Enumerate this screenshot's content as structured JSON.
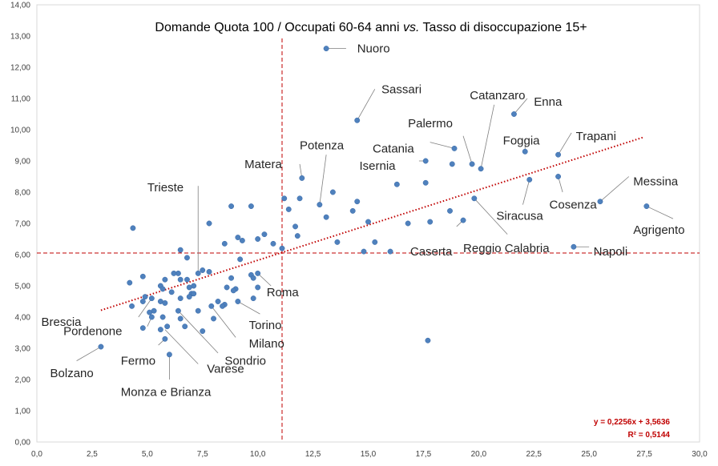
{
  "chart_data": {
    "type": "scatter",
    "title_parts": [
      "Domande Quota 100 / Occupati 60-64 anni ",
      "vs.",
      " Tasso di disoccupazione 15+"
    ],
    "xlim": [
      0,
      30
    ],
    "ylim": [
      0,
      14
    ],
    "x_ticks": [
      "0,0",
      "2,5",
      "5,0",
      "7,5",
      "10,0",
      "12,5",
      "15,0",
      "17,5",
      "20,0",
      "22,5",
      "25,0",
      "27,5",
      "30,0"
    ],
    "y_ticks": [
      "0,00",
      "1,00",
      "2,00",
      "3,00",
      "4,00",
      "5,00",
      "6,00",
      "7,00",
      "8,00",
      "9,00",
      "10,00",
      "11,00",
      "12,00",
      "13,00",
      "14,00"
    ],
    "grid": false,
    "marker_color": "#4f81bd",
    "trend_color": "#c00000",
    "reference_lines": {
      "x": 11.1,
      "y": 6.05
    },
    "trendline": {
      "slope": 0.2256,
      "intercept": 3.5636,
      "x_range": [
        2.9,
        27.5
      ]
    },
    "equation": "y = 0,2256x + 3,5636",
    "r_squared": "R² = 0,5144",
    "points": [
      {
        "x": 13.1,
        "y": 12.6
      },
      {
        "x": 14.5,
        "y": 10.3
      },
      {
        "x": 21.6,
        "y": 10.5
      },
      {
        "x": 19.7,
        "y": 8.9
      },
      {
        "x": 20.1,
        "y": 8.75
      },
      {
        "x": 18.9,
        "y": 9.4
      },
      {
        "x": 22.1,
        "y": 9.3
      },
      {
        "x": 23.6,
        "y": 9.2
      },
      {
        "x": 17.6,
        "y": 9.0
      },
      {
        "x": 18.8,
        "y": 8.9
      },
      {
        "x": 23.6,
        "y": 8.5
      },
      {
        "x": 22.3,
        "y": 8.4
      },
      {
        "x": 25.5,
        "y": 7.7
      },
      {
        "x": 27.6,
        "y": 7.55
      },
      {
        "x": 24.3,
        "y": 6.25
      },
      {
        "x": 19.8,
        "y": 7.8
      },
      {
        "x": 19.3,
        "y": 7.1
      },
      {
        "x": 18.7,
        "y": 7.4
      },
      {
        "x": 17.6,
        "y": 8.3
      },
      {
        "x": 17.8,
        "y": 7.05
      },
      {
        "x": 16.3,
        "y": 8.25
      },
      {
        "x": 16.8,
        "y": 7.0
      },
      {
        "x": 15.0,
        "y": 7.05
      },
      {
        "x": 14.5,
        "y": 7.7
      },
      {
        "x": 14.3,
        "y": 7.4
      },
      {
        "x": 16.0,
        "y": 6.1
      },
      {
        "x": 15.3,
        "y": 6.4
      },
      {
        "x": 14.8,
        "y": 6.1
      },
      {
        "x": 13.4,
        "y": 8.0
      },
      {
        "x": 12.8,
        "y": 7.6
      },
      {
        "x": 13.1,
        "y": 7.2
      },
      {
        "x": 13.6,
        "y": 6.4
      },
      {
        "x": 12.0,
        "y": 8.45
      },
      {
        "x": 11.9,
        "y": 7.8
      },
      {
        "x": 11.7,
        "y": 6.9
      },
      {
        "x": 11.8,
        "y": 6.6
      },
      {
        "x": 11.2,
        "y": 7.8
      },
      {
        "x": 11.4,
        "y": 7.45
      },
      {
        "x": 11.1,
        "y": 6.2
      },
      {
        "x": 10.7,
        "y": 6.35
      },
      {
        "x": 10.3,
        "y": 6.65
      },
      {
        "x": 10.0,
        "y": 6.5
      },
      {
        "x": 9.7,
        "y": 7.55
      },
      {
        "x": 9.1,
        "y": 6.55
      },
      {
        "x": 9.3,
        "y": 6.45
      },
      {
        "x": 8.8,
        "y": 7.55
      },
      {
        "x": 8.5,
        "y": 6.35
      },
      {
        "x": 9.2,
        "y": 5.85
      },
      {
        "x": 9.7,
        "y": 5.35
      },
      {
        "x": 9.8,
        "y": 5.25
      },
      {
        "x": 10.0,
        "y": 5.4
      },
      {
        "x": 10.0,
        "y": 4.95
      },
      {
        "x": 9.8,
        "y": 4.6
      },
      {
        "x": 8.8,
        "y": 5.25
      },
      {
        "x": 9.0,
        "y": 4.9
      },
      {
        "x": 8.6,
        "y": 4.95
      },
      {
        "x": 8.9,
        "y": 4.85
      },
      {
        "x": 8.5,
        "y": 4.4
      },
      {
        "x": 8.2,
        "y": 4.5
      },
      {
        "x": 7.9,
        "y": 4.35
      },
      {
        "x": 9.1,
        "y": 4.5
      },
      {
        "x": 8.0,
        "y": 3.95
      },
      {
        "x": 7.5,
        "y": 3.55
      },
      {
        "x": 7.8,
        "y": 5.45
      },
      {
        "x": 7.5,
        "y": 5.5
      },
      {
        "x": 7.3,
        "y": 5.4
      },
      {
        "x": 7.8,
        "y": 7.0
      },
      {
        "x": 6.5,
        "y": 6.15
      },
      {
        "x": 6.8,
        "y": 5.9
      },
      {
        "x": 6.4,
        "y": 5.4
      },
      {
        "x": 6.5,
        "y": 5.2
      },
      {
        "x": 6.8,
        "y": 5.2
      },
      {
        "x": 7.1,
        "y": 5.0
      },
      {
        "x": 7.0,
        "y": 4.75
      },
      {
        "x": 6.9,
        "y": 4.65
      },
      {
        "x": 6.5,
        "y": 4.6
      },
      {
        "x": 6.2,
        "y": 5.4
      },
      {
        "x": 6.1,
        "y": 4.8
      },
      {
        "x": 5.8,
        "y": 5.2
      },
      {
        "x": 5.6,
        "y": 5.0
      },
      {
        "x": 5.7,
        "y": 4.9
      },
      {
        "x": 5.6,
        "y": 4.5
      },
      {
        "x": 5.2,
        "y": 4.6
      },
      {
        "x": 5.8,
        "y": 4.45
      },
      {
        "x": 5.3,
        "y": 4.2
      },
      {
        "x": 5.1,
        "y": 4.15
      },
      {
        "x": 5.2,
        "y": 4.0
      },
      {
        "x": 5.7,
        "y": 4.0
      },
      {
        "x": 6.4,
        "y": 4.2
      },
      {
        "x": 7.3,
        "y": 4.2
      },
      {
        "x": 6.5,
        "y": 3.95
      },
      {
        "x": 6.7,
        "y": 3.7
      },
      {
        "x": 5.9,
        "y": 3.7
      },
      {
        "x": 5.6,
        "y": 3.6
      },
      {
        "x": 4.8,
        "y": 3.65
      },
      {
        "x": 5.8,
        "y": 3.3
      },
      {
        "x": 4.8,
        "y": 5.3
      },
      {
        "x": 4.2,
        "y": 5.1
      },
      {
        "x": 4.3,
        "y": 4.35
      },
      {
        "x": 4.8,
        "y": 4.5
      },
      {
        "x": 4.9,
        "y": 4.65
      },
      {
        "x": 4.35,
        "y": 6.85
      },
      {
        "x": 6.0,
        "y": 2.8
      },
      {
        "x": 2.9,
        "y": 3.05
      },
      {
        "x": 17.7,
        "y": 3.25
      },
      {
        "x": 7.1,
        "y": 4.75
      },
      {
        "x": 6.9,
        "y": 4.95
      },
      {
        "x": 8.4,
        "y": 4.35
      }
    ],
    "annotations": [
      {
        "text": "Nuoro",
        "px": [
          13.1,
          12.6
        ],
        "lx": 14.0,
        "ly": 12.6,
        "tx": 14.5,
        "ty": 12.6,
        "anchor": "start"
      },
      {
        "text": "Sassari",
        "px": [
          14.5,
          10.3
        ],
        "lx": 15.3,
        "ly": 11.3,
        "tx": 15.6,
        "ty": 11.3,
        "anchor": "start"
      },
      {
        "text": "Catanzaro",
        "px": [
          20.1,
          8.75
        ],
        "lx": 20.7,
        "ly": 10.8,
        "tx": 19.6,
        "ty": 11.1,
        "anchor": "start"
      },
      {
        "text": "Enna",
        "px": [
          21.6,
          10.5
        ],
        "lx": 22.2,
        "ly": 11.0,
        "tx": 22.5,
        "ty": 10.9,
        "anchor": "start"
      },
      {
        "text": "Palermo",
        "px": [
          19.7,
          8.9
        ],
        "lx": 19.3,
        "ly": 9.8,
        "tx": 16.8,
        "ty": 10.2,
        "anchor": "start"
      },
      {
        "text": "Foggia",
        "px": [
          22.1,
          9.3
        ],
        "lx": 22.1,
        "ly": 9.6,
        "tx": 21.1,
        "ty": 9.65,
        "anchor": "start"
      },
      {
        "text": "Trapani",
        "px": [
          23.6,
          9.2
        ],
        "lx": 24.2,
        "ly": 9.9,
        "tx": 24.4,
        "ty": 9.8,
        "anchor": "start"
      },
      {
        "text": "Catania",
        "px": [
          18.9,
          9.4
        ],
        "lx": 17.8,
        "ly": 9.6,
        "tx": 15.2,
        "ty": 9.4,
        "anchor": "start"
      },
      {
        "text": "Isernia",
        "px": [
          17.6,
          9.0
        ],
        "lx": 17.3,
        "ly": 9.0,
        "tx": 14.6,
        "ty": 8.85,
        "anchor": "start"
      },
      {
        "text": "Potenza",
        "px": [
          12.8,
          7.6
        ],
        "lx": 13.1,
        "ly": 9.2,
        "tx": 11.9,
        "ty": 9.5,
        "anchor": "start"
      },
      {
        "text": "Matera",
        "px": [
          12.0,
          8.45
        ],
        "lx": 11.9,
        "ly": 8.9,
        "tx": 9.4,
        "ty": 8.9,
        "anchor": "start"
      },
      {
        "text": "Messina",
        "px": [
          25.5,
          7.7
        ],
        "lx": 26.8,
        "ly": 8.5,
        "tx": 27.0,
        "ty": 8.35,
        "anchor": "start"
      },
      {
        "text": "Cosenza",
        "px": [
          23.6,
          8.5
        ],
        "lx": 23.8,
        "ly": 8.0,
        "tx": 23.2,
        "ty": 7.6,
        "anchor": "start"
      },
      {
        "text": "Siracusa",
        "px": [
          22.3,
          8.4
        ],
        "lx": 22.0,
        "ly": 7.6,
        "tx": 20.8,
        "ty": 7.25,
        "anchor": "start"
      },
      {
        "text": "Agrigento",
        "px": [
          27.6,
          7.55
        ],
        "lx": 28.8,
        "ly": 7.15,
        "tx": 27.0,
        "ty": 6.8,
        "anchor": "start"
      },
      {
        "text": "Napoli",
        "px": [
          24.3,
          6.25
        ],
        "lx": 25.0,
        "ly": 6.25,
        "tx": 25.2,
        "ty": 6.1,
        "anchor": "start"
      },
      {
        "text": "Caserta",
        "px": [
          19.3,
          7.1
        ],
        "lx": 19.0,
        "ly": 6.9,
        "tx": 16.9,
        "ty": 6.1,
        "anchor": "start"
      },
      {
        "text": "Reggio Calabria",
        "px": [
          19.8,
          7.8
        ],
        "lx": 21.3,
        "ly": 6.65,
        "tx": 19.3,
        "ty": 6.2,
        "anchor": "start"
      },
      {
        "text": "Trieste",
        "px": [
          7.3,
          5.4
        ],
        "lx": 7.3,
        "ly": 8.2,
        "tx": 5.0,
        "ty": 8.15,
        "anchor": "start"
      },
      {
        "text": "Roma",
        "px": [
          10.0,
          5.4
        ],
        "lx": 10.6,
        "ly": 5.0,
        "tx": 10.4,
        "ty": 4.8,
        "anchor": "start"
      },
      {
        "text": "Torino",
        "px": [
          9.1,
          4.5
        ],
        "lx": 10.1,
        "ly": 4.1,
        "tx": 9.6,
        "ty": 3.75,
        "anchor": "start"
      },
      {
        "text": "Milano",
        "px": [
          7.9,
          4.35
        ],
        "lx": 9.0,
        "ly": 3.35,
        "tx": 9.6,
        "ty": 3.15,
        "anchor": "start"
      },
      {
        "text": "Sondrio",
        "px": [
          6.4,
          4.2
        ],
        "lx": 8.2,
        "ly": 2.85,
        "tx": 8.5,
        "ty": 2.6,
        "anchor": "start"
      },
      {
        "text": "Varese",
        "px": [
          5.8,
          3.6
        ],
        "lx": 7.3,
        "ly": 2.5,
        "tx": 7.7,
        "ty": 2.35,
        "anchor": "start"
      },
      {
        "text": "Brescia",
        "px": [
          5.2,
          4.6
        ],
        "lx": 4.6,
        "ly": 4.0,
        "tx": 0.2,
        "ty": 3.85,
        "anchor": "start"
      },
      {
        "text": "Pordenone",
        "px": [
          5.2,
          4.0
        ],
        "lx": 5.0,
        "ly": 3.7,
        "tx": 1.2,
        "ty": 3.55,
        "anchor": "start"
      },
      {
        "text": "Fermo",
        "px": [
          5.8,
          3.3
        ],
        "lx": 5.5,
        "ly": 3.1,
        "tx": 3.8,
        "ty": 2.6,
        "anchor": "start"
      },
      {
        "text": "Monza e Brianza",
        "px": [
          6.0,
          2.8
        ],
        "lx": 6.0,
        "ly": 2.0,
        "tx": 3.8,
        "ty": 1.6,
        "anchor": "start"
      },
      {
        "text": "Bolzano",
        "px": [
          2.9,
          3.05
        ],
        "lx": 1.8,
        "ly": 2.6,
        "tx": 0.6,
        "ty": 2.2,
        "anchor": "start"
      }
    ]
  }
}
